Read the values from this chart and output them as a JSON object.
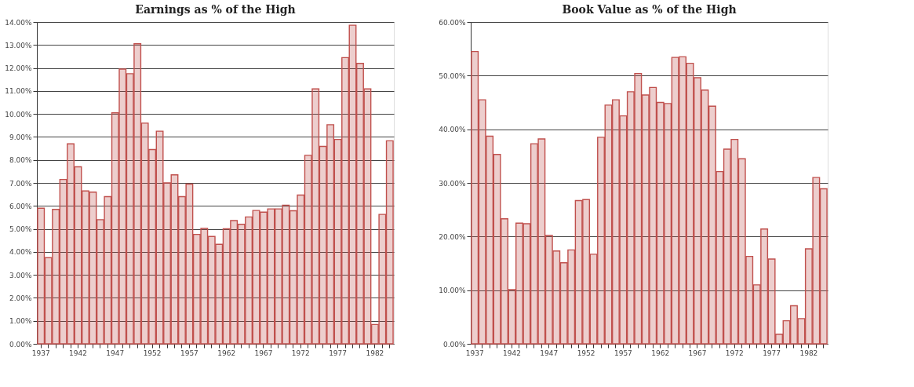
{
  "chart_data": [
    {
      "type": "bar",
      "title": "Earnings as % of the High",
      "categories": [
        "1937",
        null,
        null,
        null,
        null,
        "1942",
        null,
        null,
        null,
        null,
        "1947",
        null,
        null,
        null,
        null,
        "1952",
        null,
        null,
        null,
        null,
        "1957",
        null,
        null,
        null,
        null,
        "1962",
        null,
        null,
        null,
        null,
        "1967",
        null,
        null,
        null,
        null,
        "1972",
        null,
        null,
        null,
        null,
        "1977",
        null,
        null,
        null,
        null,
        "1982",
        null,
        null
      ],
      "values": [
        5.9,
        3.75,
        5.85,
        7.15,
        8.7,
        7.7,
        6.65,
        6.6,
        5.4,
        6.4,
        10.05,
        11.95,
        11.75,
        13.05,
        9.6,
        8.45,
        9.25,
        7.0,
        7.35,
        6.4,
        6.95,
        4.76,
        5.02,
        4.67,
        4.33,
        5.0,
        5.36,
        5.2,
        5.52,
        5.8,
        5.73,
        5.87,
        5.87,
        6.03,
        5.79,
        6.47,
        8.2,
        11.09,
        8.59,
        9.53,
        8.89,
        12.45,
        13.86,
        12.2,
        11.09,
        0.84,
        5.63,
        8.83
      ],
      "color": "#c0504d",
      "ylim": [
        0,
        14
      ],
      "yticks": [
        {
          "value": 0,
          "label": "0.00%"
        },
        {
          "value": 1,
          "label": "1.00%"
        },
        {
          "value": 2,
          "label": "2.00%"
        },
        {
          "value": 3,
          "label": "3.00%"
        },
        {
          "value": 4,
          "label": "4.00%"
        },
        {
          "value": 5,
          "label": "5.00%"
        },
        {
          "value": 6,
          "label": "6.00%"
        },
        {
          "value": 7,
          "label": "7.00%"
        },
        {
          "value": 8,
          "label": "8.00%"
        },
        {
          "value": 9,
          "label": "9.00%"
        },
        {
          "value": 10,
          "label": "10.00%"
        },
        {
          "value": 11,
          "label": "11.00%"
        },
        {
          "value": 12,
          "label": "12.00%"
        },
        {
          "value": 13,
          "label": "13.00%"
        },
        {
          "value": 14,
          "label": "14.00%"
        }
      ],
      "grid": "y"
    },
    {
      "type": "bar",
      "title": "Book Value as % of the High",
      "categories": [
        "1937",
        null,
        null,
        null,
        null,
        "1942",
        null,
        null,
        null,
        null,
        "1947",
        null,
        null,
        null,
        null,
        "1952",
        null,
        null,
        null,
        null,
        "1957",
        null,
        null,
        null,
        null,
        "1962",
        null,
        null,
        null,
        null,
        "1967",
        null,
        null,
        null,
        null,
        "1972",
        null,
        null,
        null,
        null,
        "1977",
        null,
        null,
        null,
        null,
        "1982",
        null,
        null
      ],
      "values": [
        54.5,
        45.5,
        38.7,
        35.3,
        23.3,
        10.1,
        22.5,
        22.4,
        37.3,
        38.2,
        20.2,
        17.3,
        15.1,
        17.5,
        26.7,
        26.9,
        16.7,
        38.5,
        44.5,
        45.5,
        42.5,
        47.0,
        50.4,
        46.4,
        47.8,
        45.0,
        44.8,
        53.4,
        53.5,
        52.3,
        49.6,
        47.3,
        44.3,
        32.1,
        36.3,
        38.1,
        34.5,
        16.3,
        11.0,
        21.4,
        15.8,
        1.8,
        4.3,
        7.1,
        4.7,
        17.7,
        31.0,
        28.9
      ],
      "color": "#c0504d",
      "ylim": [
        0,
        60
      ],
      "yticks": [
        {
          "value": 0,
          "label": "0.00%"
        },
        {
          "value": 10,
          "label": "10.00%"
        },
        {
          "value": 20,
          "label": "20.00%"
        },
        {
          "value": 30,
          "label": "30.00%"
        },
        {
          "value": 40,
          "label": "40.00%"
        },
        {
          "value": 50,
          "label": "50.00%"
        },
        {
          "value": 60,
          "label": "60.00%"
        }
      ],
      "grid": "y"
    }
  ]
}
